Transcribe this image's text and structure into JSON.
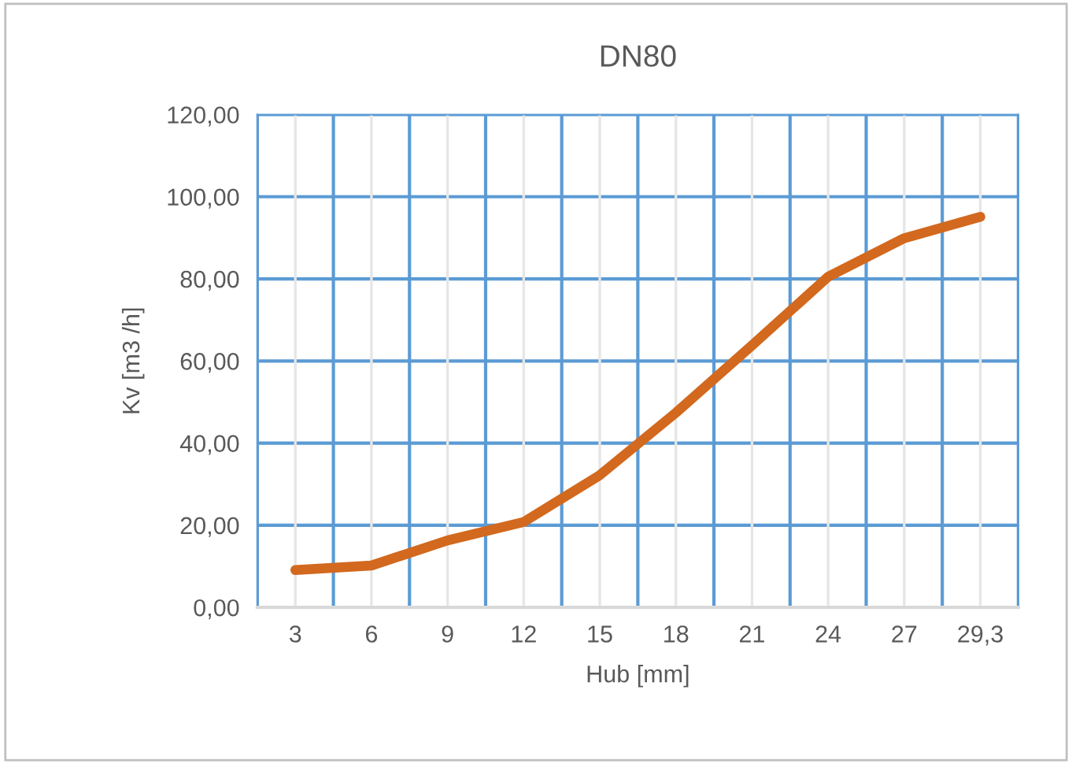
{
  "chart_data": {
    "type": "line",
    "title": "DN80",
    "xlabel": "Hub [mm]",
    "ylabel": "Kv [m3 /h]",
    "categories": [
      "3",
      "6",
      "9",
      "12",
      "15",
      "18",
      "21",
      "24",
      "27",
      "29,3"
    ],
    "series": [
      {
        "color": "#d2691e",
        "values": [
          9.1,
          10.2,
          16.3,
          20.8,
          32.2,
          47.4,
          63.8,
          80.5,
          89.9,
          95.1
        ]
      }
    ],
    "ylim": [
      0,
      120
    ],
    "yticks": [
      {
        "value": 0,
        "label": "0,00"
      },
      {
        "value": 20,
        "label": "20,00"
      },
      {
        "value": 40,
        "label": "40,00"
      },
      {
        "value": 60,
        "label": "60,00"
      },
      {
        "value": 80,
        "label": "80,00"
      },
      {
        "value": 100,
        "label": "100,00"
      },
      {
        "value": 120,
        "label": "120,00"
      }
    ],
    "grid": true,
    "legend": false,
    "marker": "none",
    "line_style": "solid"
  }
}
